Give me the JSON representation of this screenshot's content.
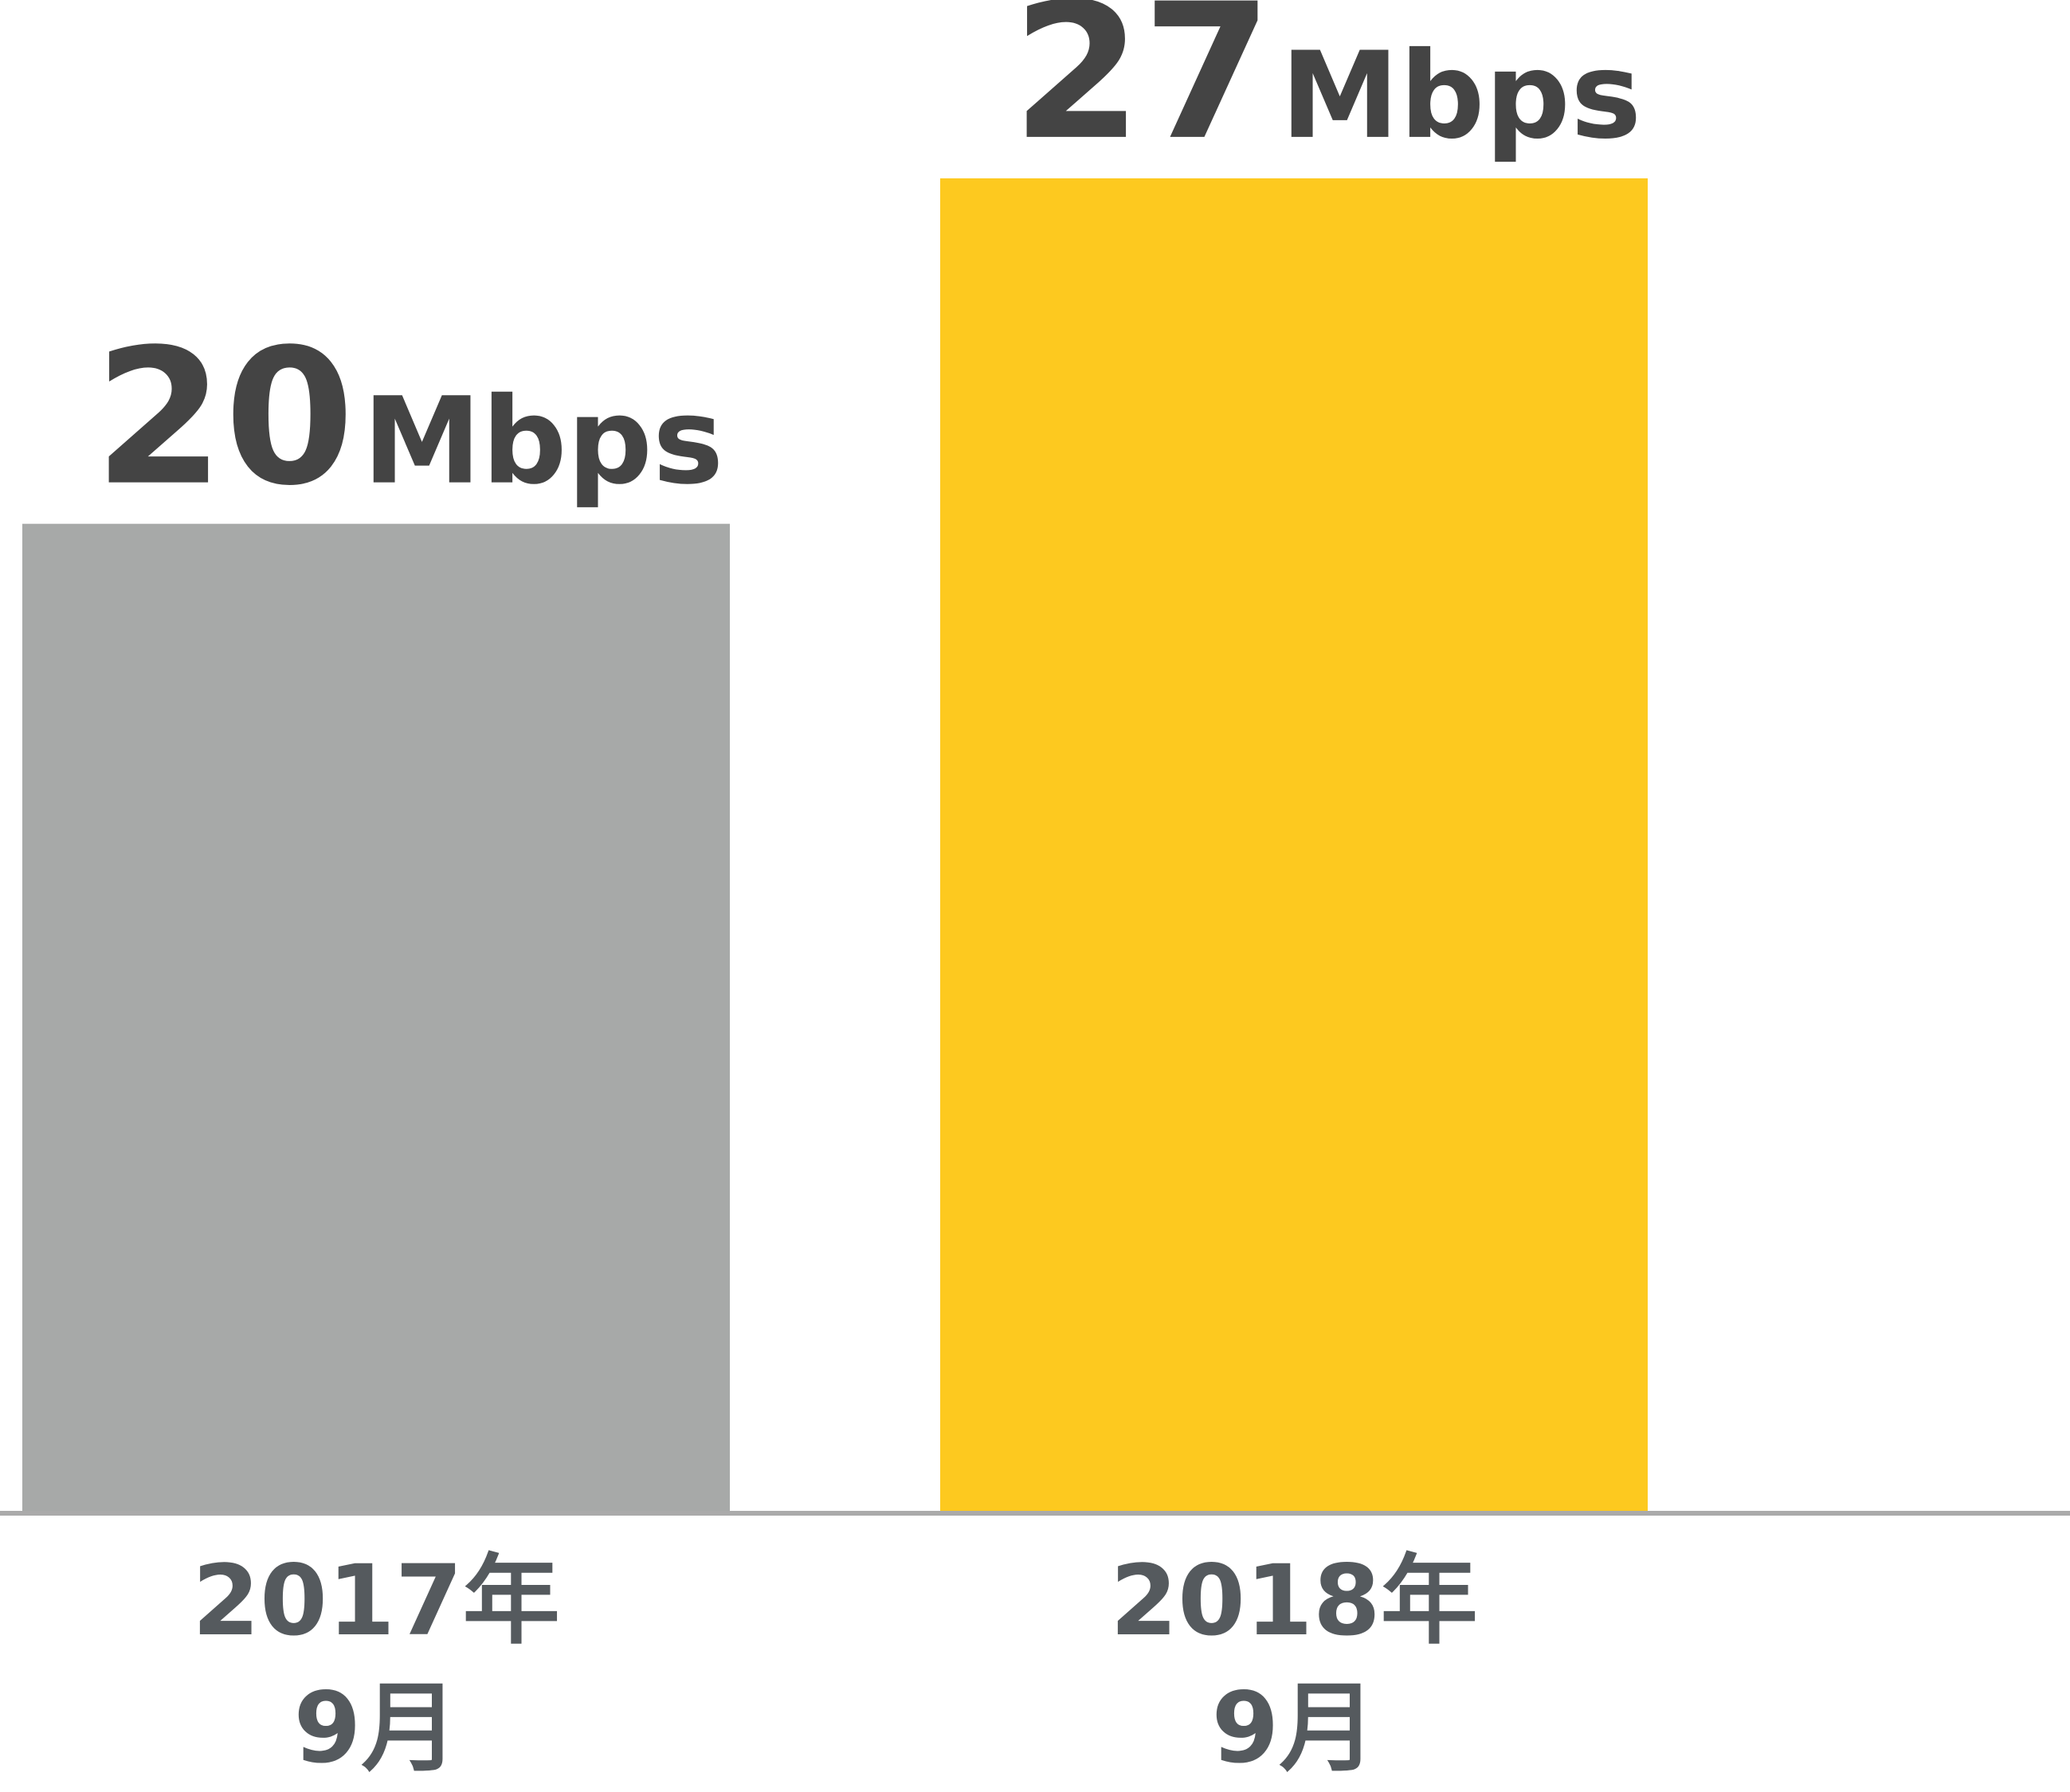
{
  "chart_data": {
    "type": "bar",
    "categories": [
      "2017年\n9月",
      "2018年\n9月"
    ],
    "values": [
      20,
      27
    ],
    "unit": "Mbps",
    "colors": [
      "#a7a9a8",
      "#fdc91f"
    ],
    "ylim": [
      0,
      30
    ]
  }
}
